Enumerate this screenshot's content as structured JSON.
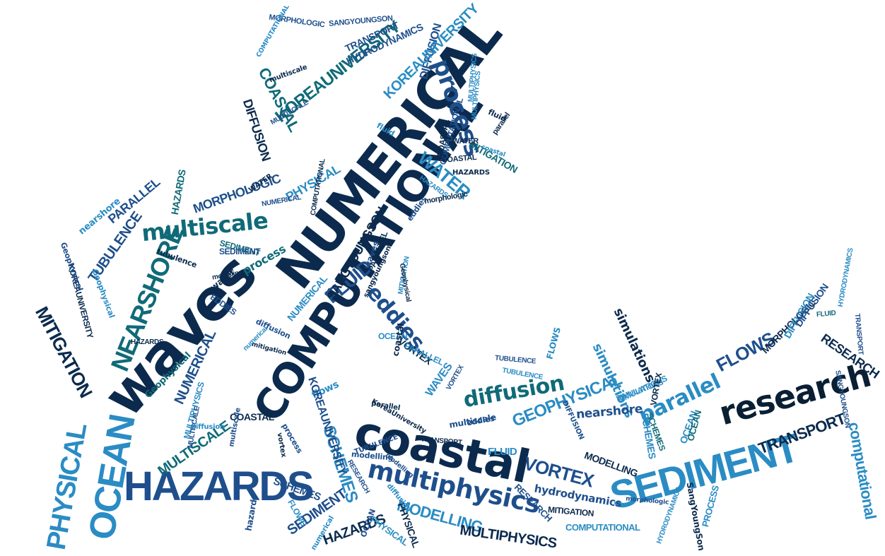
{
  "palette": {
    "navy": "#0b2a4d",
    "blue": "#1e4f8c",
    "teal": "#106a78",
    "sky": "#2a8cc4",
    "cyan": "#4aa8d8",
    "dark": "#0a1f33"
  },
  "words": [
    {
      "text": "NUMERICAL",
      "color": "#0b2a4d"
    },
    {
      "text": "COMPUTATIONAL",
      "color": "#0b2a4d"
    },
    {
      "text": "waves",
      "color": "#0b2a4d"
    },
    {
      "text": "coastal",
      "color": "#0b2a4d"
    },
    {
      "text": "HAZARDS",
      "color": "#1e4f8c"
    },
    {
      "text": "SEDIMENT",
      "color": "#2a8cc4"
    },
    {
      "text": "research",
      "color": "#0a1f33"
    },
    {
      "text": "multiphysics",
      "color": "#1e4f8c"
    },
    {
      "text": "OCEAN",
      "color": "#2a8cc4"
    },
    {
      "text": "PHYSICAL",
      "color": "#2a8cc4"
    },
    {
      "text": "NEARSHORE",
      "color": "#106a78"
    },
    {
      "text": "multiscale",
      "color": "#106a78"
    },
    {
      "text": "process",
      "color": "#1e4f8c"
    },
    {
      "text": "KOREAUNIVERSITY",
      "color": "#106a78"
    },
    {
      "text": "eddies",
      "color": "#1e4f8c"
    },
    {
      "text": "FLUID",
      "color": "#1e4f8c"
    },
    {
      "text": "WATER",
      "color": "#2a8cc4"
    },
    {
      "text": "diffusion",
      "color": "#106a78"
    },
    {
      "text": "parallel",
      "color": "#2a8cc4"
    },
    {
      "text": "FLOWS",
      "color": "#1e4f8c"
    },
    {
      "text": "GEOPHYSICAL",
      "color": "#2a8cc4"
    },
    {
      "text": "VORTEX",
      "color": "#1e4f8c"
    },
    {
      "text": "SCHEMES",
      "color": "#2a8cc4"
    },
    {
      "text": "MODELLING",
      "color": "#2a8cc4"
    },
    {
      "text": "TRANSPORT",
      "color": "#0b2a4d"
    },
    {
      "text": "computational",
      "color": "#2a8cc4"
    },
    {
      "text": "MITIGATION",
      "color": "#0b2a4d"
    },
    {
      "text": "TUBULENCE",
      "color": "#1e4f8c"
    },
    {
      "text": "MULTISCALE",
      "color": "#106a78"
    },
    {
      "text": "MULTIPHYSICS",
      "color": "#0b2a4d"
    },
    {
      "text": "SEDIMENT",
      "color": "#1e4f8c"
    },
    {
      "text": "HAZARDS",
      "color": "#0b2a4d"
    },
    {
      "text": "MORPHOLOGIC",
      "color": "#1e4f8c"
    },
    {
      "text": "PHYSICAL",
      "color": "#2a8cc4"
    },
    {
      "text": "PARALLEL",
      "color": "#1e4f8c"
    },
    {
      "text": "nearshore",
      "color": "#2a8cc4"
    },
    {
      "text": "SANGYOUNGSON",
      "color": "#0b2a4d"
    },
    {
      "text": "COASTAL",
      "color": "#106a78"
    },
    {
      "text": "DIFFUSION",
      "color": "#0b2a4d"
    },
    {
      "text": "DIFFUSION",
      "color": "#1e4f8c"
    },
    {
      "text": "TRANSPORT",
      "color": "#1e4f8c"
    },
    {
      "text": "KOREAUNIVERSITY",
      "color": "#2a8cc4"
    },
    {
      "text": "simulations",
      "color": "#2a8cc4"
    },
    {
      "text": "hydrodynamics",
      "color": "#1e4f8c"
    },
    {
      "text": "nearshore",
      "color": "#1e4f8c"
    },
    {
      "text": "RESEARCH",
      "color": "#0b2a4d"
    },
    {
      "text": "NUMERICAL",
      "color": "#1e4f8c"
    },
    {
      "text": "MITIGATION",
      "color": "#106a78"
    },
    {
      "text": "Geophysical",
      "color": "#106a78"
    },
    {
      "text": "COMPUTATIONAL",
      "color": "#1e4f8c"
    },
    {
      "text": "VORTEX",
      "color": "#0b2a4d"
    },
    {
      "text": "MORPHOLOGIC",
      "color": "#0b2a4d"
    },
    {
      "text": "DIFFUSION",
      "color": "#2a8cc4"
    },
    {
      "text": "RESEARCH",
      "color": "#1e4f8c"
    },
    {
      "text": "COASTAL",
      "color": "#0b2a4d"
    },
    {
      "text": "SCHEMES",
      "color": "#1e4f8c"
    },
    {
      "text": "SIMULATIONS",
      "color": "#2a8cc4"
    },
    {
      "text": "OCEAN",
      "color": "#2a8cc4"
    },
    {
      "text": "flows",
      "color": "#2a8cc4"
    },
    {
      "text": "FLUID",
      "color": "#2a8cc4"
    },
    {
      "text": "multiscale",
      "color": "#1e4f8c"
    },
    {
      "text": "MODELLING",
      "color": "#0b2a4d"
    },
    {
      "text": "HAZARDS",
      "color": "#2a8cc4"
    },
    {
      "text": "WAVES",
      "color": "#2a8cc4"
    },
    {
      "text": "process",
      "color": "#106a78"
    },
    {
      "text": "SEDIMENT",
      "color": "#106a78"
    },
    {
      "text": "PROCESS",
      "color": "#2a8cc4"
    },
    {
      "text": "SangYoungSon",
      "color": "#0b2a4d"
    },
    {
      "text": "MULTIPHYSICS",
      "color": "#2a8cc4"
    },
    {
      "text": "TUBULENCE",
      "color": "#2a8cc4"
    },
    {
      "text": "MITIGATION",
      "color": "#0b2a4d"
    },
    {
      "text": "HYDRODYNAMICS",
      "color": "#2a8cc4"
    },
    {
      "text": "COMPUTATIONAL",
      "color": "#2a8cc4"
    },
    {
      "text": "OCEAN",
      "color": "#2a8cc4"
    },
    {
      "text": "PARALLEL",
      "color": "#2a8cc4"
    },
    {
      "text": "water",
      "color": "#0b2a4d"
    },
    {
      "text": "EDDIES",
      "color": "#1e4f8c"
    },
    {
      "text": "NUMERICAL",
      "color": "#2a8cc4"
    },
    {
      "text": "tubulence",
      "color": "#0b2a4d"
    },
    {
      "text": "KOREAUNIVERSITY",
      "color": "#0b2a4d"
    },
    {
      "text": "SEDIMENT",
      "color": "#1e4f8c"
    },
    {
      "text": "Geophysical",
      "color": "#1e4f8c"
    },
    {
      "text": "Geophysical",
      "color": "#2a8cc4"
    },
    {
      "text": "HAZARDS",
      "color": "#106a78"
    },
    {
      "text": "COASTAL",
      "color": "#0b2a4d"
    },
    {
      "text": "MORPHOLOGIC",
      "color": "#1e4f8c"
    },
    {
      "text": "SANGYOUNGSON",
      "color": "#1e4f8c"
    },
    {
      "text": "MULTIPHYSICS",
      "color": "#2a8cc4"
    },
    {
      "text": "SIMULATIONS",
      "color": "#2a8cc4"
    },
    {
      "text": "DIFFUSION",
      "color": "#1e4f8c"
    },
    {
      "text": "HYDRODYNAMICS",
      "color": "#2a8cc4"
    },
    {
      "text": "OCEAN",
      "color": "#106a78"
    },
    {
      "text": "PHYSICAL",
      "color": "#2a8cc4"
    },
    {
      "text": "SCHEMES",
      "color": "#106a78"
    },
    {
      "text": "TRANSPORT",
      "color": "#1e4f8c"
    },
    {
      "text": "modelling",
      "color": "#1e4f8c"
    },
    {
      "text": "eddies",
      "color": "#1e4f8c"
    },
    {
      "text": "waves",
      "color": "#1e4f8c"
    },
    {
      "text": "FLOWS",
      "color": "#2a8cc4"
    },
    {
      "text": "PARALLEL",
      "color": "#0b2a4d"
    },
    {
      "text": "WATER",
      "color": "#0b2a4d"
    },
    {
      "text": "fluid",
      "color": "#0b2a4d"
    },
    {
      "text": "coastal",
      "color": "#2a8cc4"
    },
    {
      "text": "MULTISCALE",
      "color": "#1e4f8c"
    },
    {
      "text": "COMPUTATIONAL",
      "color": "#0b2a4d"
    },
    {
      "text": "sangyoungson",
      "color": "#0b2a4d"
    },
    {
      "text": "process",
      "color": "#1e4f8c"
    },
    {
      "text": "VORTEX",
      "color": "#0b2a4d"
    },
    {
      "text": "NUMERICAL",
      "color": "#1e4f8c"
    },
    {
      "text": "RESEARCH",
      "color": "#1e4f8c"
    },
    {
      "text": "fluid",
      "color": "#2a8cc4"
    },
    {
      "text": "diffusion",
      "color": "#1e4f8c"
    },
    {
      "text": "mitigation",
      "color": "#0b2a4d"
    },
    {
      "text": "diffusion",
      "color": "#2a8cc4"
    },
    {
      "text": "parallel",
      "color": "#0b2a4d"
    },
    {
      "text": "multiscale",
      "color": "#1e4f8c"
    },
    {
      "text": "eddies",
      "color": "#1e4f8c"
    },
    {
      "text": "TUBULENCE",
      "color": "#1e4f8c"
    },
    {
      "text": "vortex",
      "color": "#0b2a4d"
    },
    {
      "text": "modelling",
      "color": "#1e4f8c"
    },
    {
      "text": "numerical",
      "color": "#2a8cc4"
    },
    {
      "text": "simulations",
      "color": "#0b2a4d"
    },
    {
      "text": "hazards",
      "color": "#1e4f8c"
    },
    {
      "text": "morphologic",
      "color": "#1e4f8c"
    },
    {
      "text": "PHYSICAL",
      "color": "#0b2a4d"
    },
    {
      "text": "SCHEMES",
      "color": "#2a8cc4"
    },
    {
      "text": "FLOWS",
      "color": "#2a8cc4"
    },
    {
      "text": "KOREAUNIVERSITY",
      "color": "#1e4f8c"
    },
    {
      "text": "COASTAL",
      "color": "#0b2a4d"
    },
    {
      "text": "MULTIPHYSICS",
      "color": "#2a8cc4"
    },
    {
      "text": "SANGYOUNGSON",
      "color": "#1e4f8c"
    },
    {
      "text": "coastal",
      "color": "#0b2a4d"
    },
    {
      "text": "MULTISCALE",
      "color": "#1e4f8c"
    },
    {
      "text": "VORTEX",
      "color": "#1e4f8c"
    },
    {
      "text": "HAZARDS",
      "color": "#0b2a4d"
    },
    {
      "text": "MITIGATION",
      "color": "#2a8cc4"
    },
    {
      "text": "OCEAN",
      "color": "#1e4f8c"
    },
    {
      "text": "Geophysical",
      "color": "#0b2a4d"
    },
    {
      "text": "numerical",
      "color": "#2a8cc4"
    },
    {
      "text": "HYDRODYNAMICS",
      "color": "#1e4f8c"
    },
    {
      "text": "FLUID",
      "color": "#106a78"
    },
    {
      "text": "TRANSPORT",
      "color": "#0b2a4d"
    },
    {
      "text": "DIFFUSION",
      "color": "#1e4f8c"
    },
    {
      "text": "TUBULENCE",
      "color": "#1e4f8c"
    },
    {
      "text": "diffusion",
      "color": "#2a8cc4"
    },
    {
      "text": "modelling",
      "color": "#0b2a4d"
    },
    {
      "text": "multiscale",
      "color": "#0b2a4d"
    },
    {
      "text": "COMPUTATIONAL",
      "color": "#2a8cc4"
    },
    {
      "text": "KoreaUniversity",
      "color": "#0b2a4d"
    },
    {
      "text": "morphologic",
      "color": "#0b2a4d"
    },
    {
      "text": "parallel",
      "color": "#0b2a4d"
    },
    {
      "text": "HAZARDS",
      "color": "#0b2a4d"
    },
    {
      "text": "WATER",
      "color": "#0b2a4d"
    },
    {
      "text": "coastal",
      "color": "#2a8cc4"
    },
    {
      "text": "multiphysics",
      "color": "#0b2a4d"
    }
  ]
}
